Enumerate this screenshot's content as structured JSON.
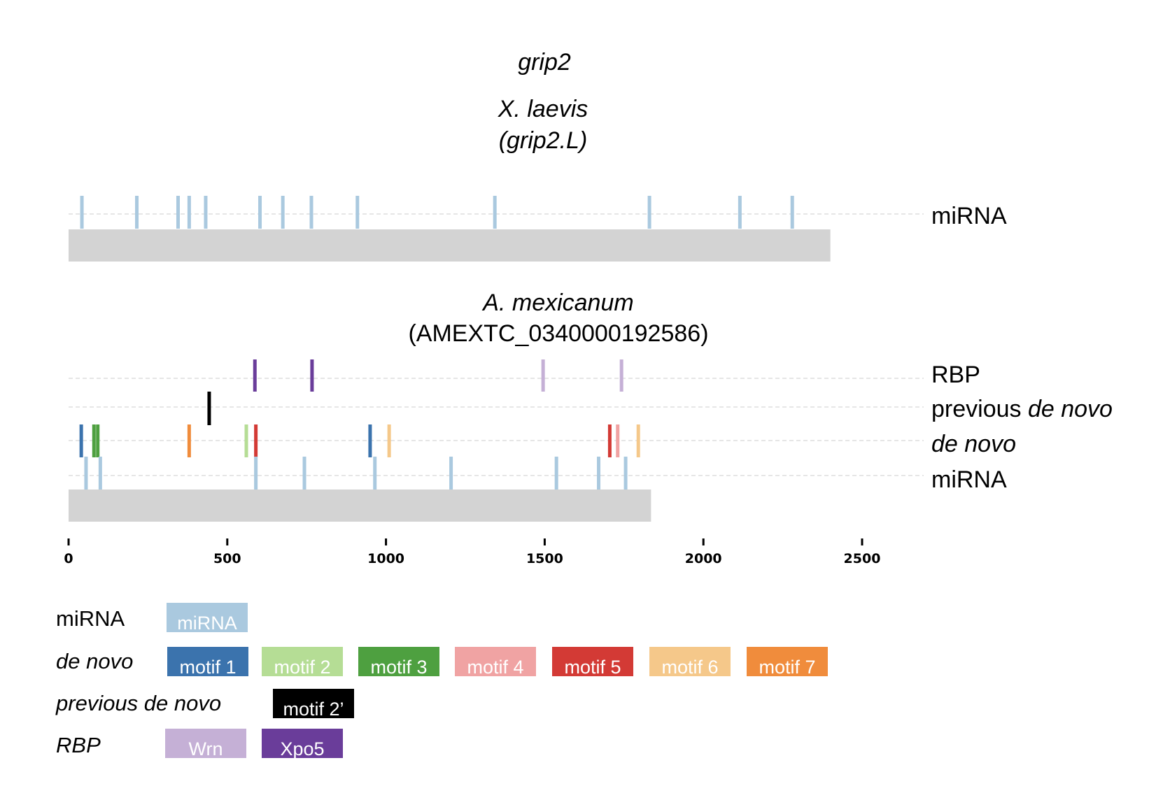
{
  "gene_title": "grip2",
  "panels": [
    {
      "species": "X. laevis",
      "transcript": "(grip2.L)",
      "length": 2400,
      "tracks": [
        {
          "key": "mirna",
          "label": "miRNA",
          "italic": false,
          "sites": [
            {
              "pos": 42,
              "type": "miRNA"
            },
            {
              "pos": 215,
              "type": "miRNA"
            },
            {
              "pos": 345,
              "type": "miRNA"
            },
            {
              "pos": 380,
              "type": "miRNA"
            },
            {
              "pos": 432,
              "type": "miRNA"
            },
            {
              "pos": 603,
              "type": "miRNA"
            },
            {
              "pos": 675,
              "type": "miRNA"
            },
            {
              "pos": 765,
              "type": "miRNA"
            },
            {
              "pos": 910,
              "type": "miRNA"
            },
            {
              "pos": 1343,
              "type": "miRNA"
            },
            {
              "pos": 1830,
              "type": "miRNA"
            },
            {
              "pos": 2115,
              "type": "miRNA"
            },
            {
              "pos": 2280,
              "type": "miRNA"
            }
          ]
        }
      ]
    },
    {
      "species": "A. mexicanum",
      "transcript": "(AMEXTC_0340000192586)",
      "length": 1835,
      "tracks": [
        {
          "key": "rbp",
          "label": "RBP",
          "italic": false,
          "sites": [
            {
              "pos": 587,
              "type": "Xpo5"
            },
            {
              "pos": 767,
              "type": "Xpo5"
            },
            {
              "pos": 1495,
              "type": "Wrn"
            },
            {
              "pos": 1742,
              "type": "Wrn"
            }
          ]
        },
        {
          "key": "prev",
          "label_plain": "previous ",
          "label_italic": "de novo",
          "sites": [
            {
              "pos": 443,
              "type": "motif 2’"
            }
          ]
        },
        {
          "key": "denovo",
          "label": "de novo",
          "italic": true,
          "sites": [
            {
              "pos": 40,
              "type": "motif 1"
            },
            {
              "pos": 80,
              "type": "motif 3"
            },
            {
              "pos": 92,
              "type": "motif 3"
            },
            {
              "pos": 380,
              "type": "motif 7"
            },
            {
              "pos": 560,
              "type": "motif 2"
            },
            {
              "pos": 590,
              "type": "motif 5"
            },
            {
              "pos": 950,
              "type": "motif 1"
            },
            {
              "pos": 1010,
              "type": "motif 6"
            },
            {
              "pos": 1705,
              "type": "motif 5"
            },
            {
              "pos": 1730,
              "type": "motif 4"
            },
            {
              "pos": 1795,
              "type": "motif 6"
            }
          ]
        },
        {
          "key": "mirna",
          "label": "miRNA",
          "italic": false,
          "sites": [
            {
              "pos": 55,
              "type": "miRNA"
            },
            {
              "pos": 100,
              "type": "miRNA"
            },
            {
              "pos": 590,
              "type": "miRNA"
            },
            {
              "pos": 743,
              "type": "miRNA"
            },
            {
              "pos": 965,
              "type": "miRNA"
            },
            {
              "pos": 1205,
              "type": "miRNA"
            },
            {
              "pos": 1537,
              "type": "miRNA"
            },
            {
              "pos": 1670,
              "type": "miRNA"
            },
            {
              "pos": 1755,
              "type": "miRNA"
            }
          ]
        }
      ]
    }
  ],
  "axis": {
    "min": 0,
    "max": 2500,
    "ticks": [
      0,
      500,
      1000,
      1500,
      2000,
      2500
    ],
    "tick_labels": [
      "0",
      "500",
      "1000",
      "1500",
      "2000",
      "2500"
    ]
  },
  "legend": [
    {
      "category": "miRNA",
      "italic": false,
      "items": [
        {
          "label": "miRNA",
          "color": "#aac9df"
        }
      ]
    },
    {
      "category": "de novo",
      "italic": true,
      "items": [
        {
          "label": "motif 1",
          "color": "#3b73ad"
        },
        {
          "label": "motif 2",
          "color": "#b5dd95"
        },
        {
          "label": "motif 3",
          "color": "#4ea040"
        },
        {
          "label": "motif 4",
          "color": "#f0a3a3"
        },
        {
          "label": "motif 5",
          "color": "#d33a35"
        },
        {
          "label": "motif 6",
          "color": "#f5c88a"
        },
        {
          "label": "motif 7",
          "color": "#f08c3c"
        }
      ]
    },
    {
      "category": "previous de novo",
      "italic": true,
      "items": [
        {
          "label": "motif 2’",
          "color": "#000000"
        }
      ]
    },
    {
      "category": "RBP",
      "italic": true,
      "items": [
        {
          "label": "Wrn",
          "color": "#c5b0d6"
        },
        {
          "label": "Xpo5",
          "color": "#6a3d9a"
        }
      ]
    }
  ],
  "colors": {
    "transcript_bar": "#d3d3d3",
    "guide_line": "#cccccc"
  }
}
